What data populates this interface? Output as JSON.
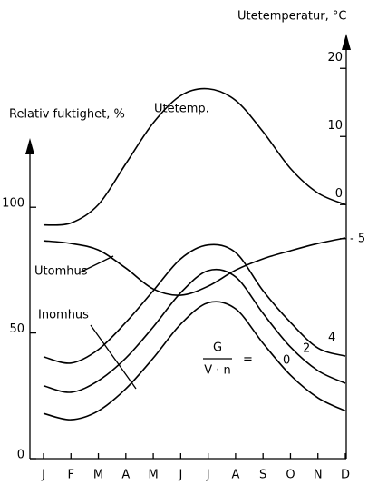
{
  "chart_data": {
    "type": "line",
    "ylabel": "Relativ fuktighet, %",
    "y2label": "Utetemperatur, °C",
    "categories": [
      "J",
      "F",
      "M",
      "A",
      "M",
      "J",
      "J",
      "A",
      "S",
      "O",
      "N",
      "D"
    ],
    "series": [
      {
        "name": "Utetemp.",
        "color": "#000000",
        "axis": "y2",
        "values": [
          -3,
          -2.7,
          0,
          6,
          12,
          16,
          17,
          15.3,
          10.7,
          5.3,
          1.7,
          0
        ]
      },
      {
        "name": "Utomhus",
        "color": "#000000",
        "values": [
          86.7,
          85.6,
          83,
          75.8,
          67.5,
          65,
          68.6,
          75,
          79.5,
          82.7,
          85.6,
          87.8
        ]
      },
      {
        "name": "4",
        "color": "#000000",
        "values": [
          40.5,
          38,
          43.4,
          54.2,
          66.8,
          79.5,
          85,
          82,
          66.8,
          54.2,
          44,
          40.8
        ]
      },
      {
        "name": "2",
        "color": "#000000",
        "values": [
          29,
          26.4,
          31,
          40,
          52.4,
          66,
          74.8,
          72.3,
          57.8,
          44.4,
          35,
          30
        ]
      },
      {
        "name": "0",
        "color": "#000000",
        "values": [
          18,
          15.5,
          19,
          27.8,
          40,
          53.5,
          62,
          59.6,
          45.9,
          33.2,
          24.2,
          19
        ]
      }
    ],
    "annotations": [
      "Inomhus",
      "G",
      "V · n",
      "="
    ],
    "ylim": [
      0,
      168
    ],
    "yticks": [
      0,
      50,
      100
    ],
    "y2lim": [
      -37.3,
      24.7
    ],
    "y2ticks": [
      {
        "value": -5,
        "label": "- 5"
      },
      0,
      10,
      20
    ],
    "grid": false
  }
}
